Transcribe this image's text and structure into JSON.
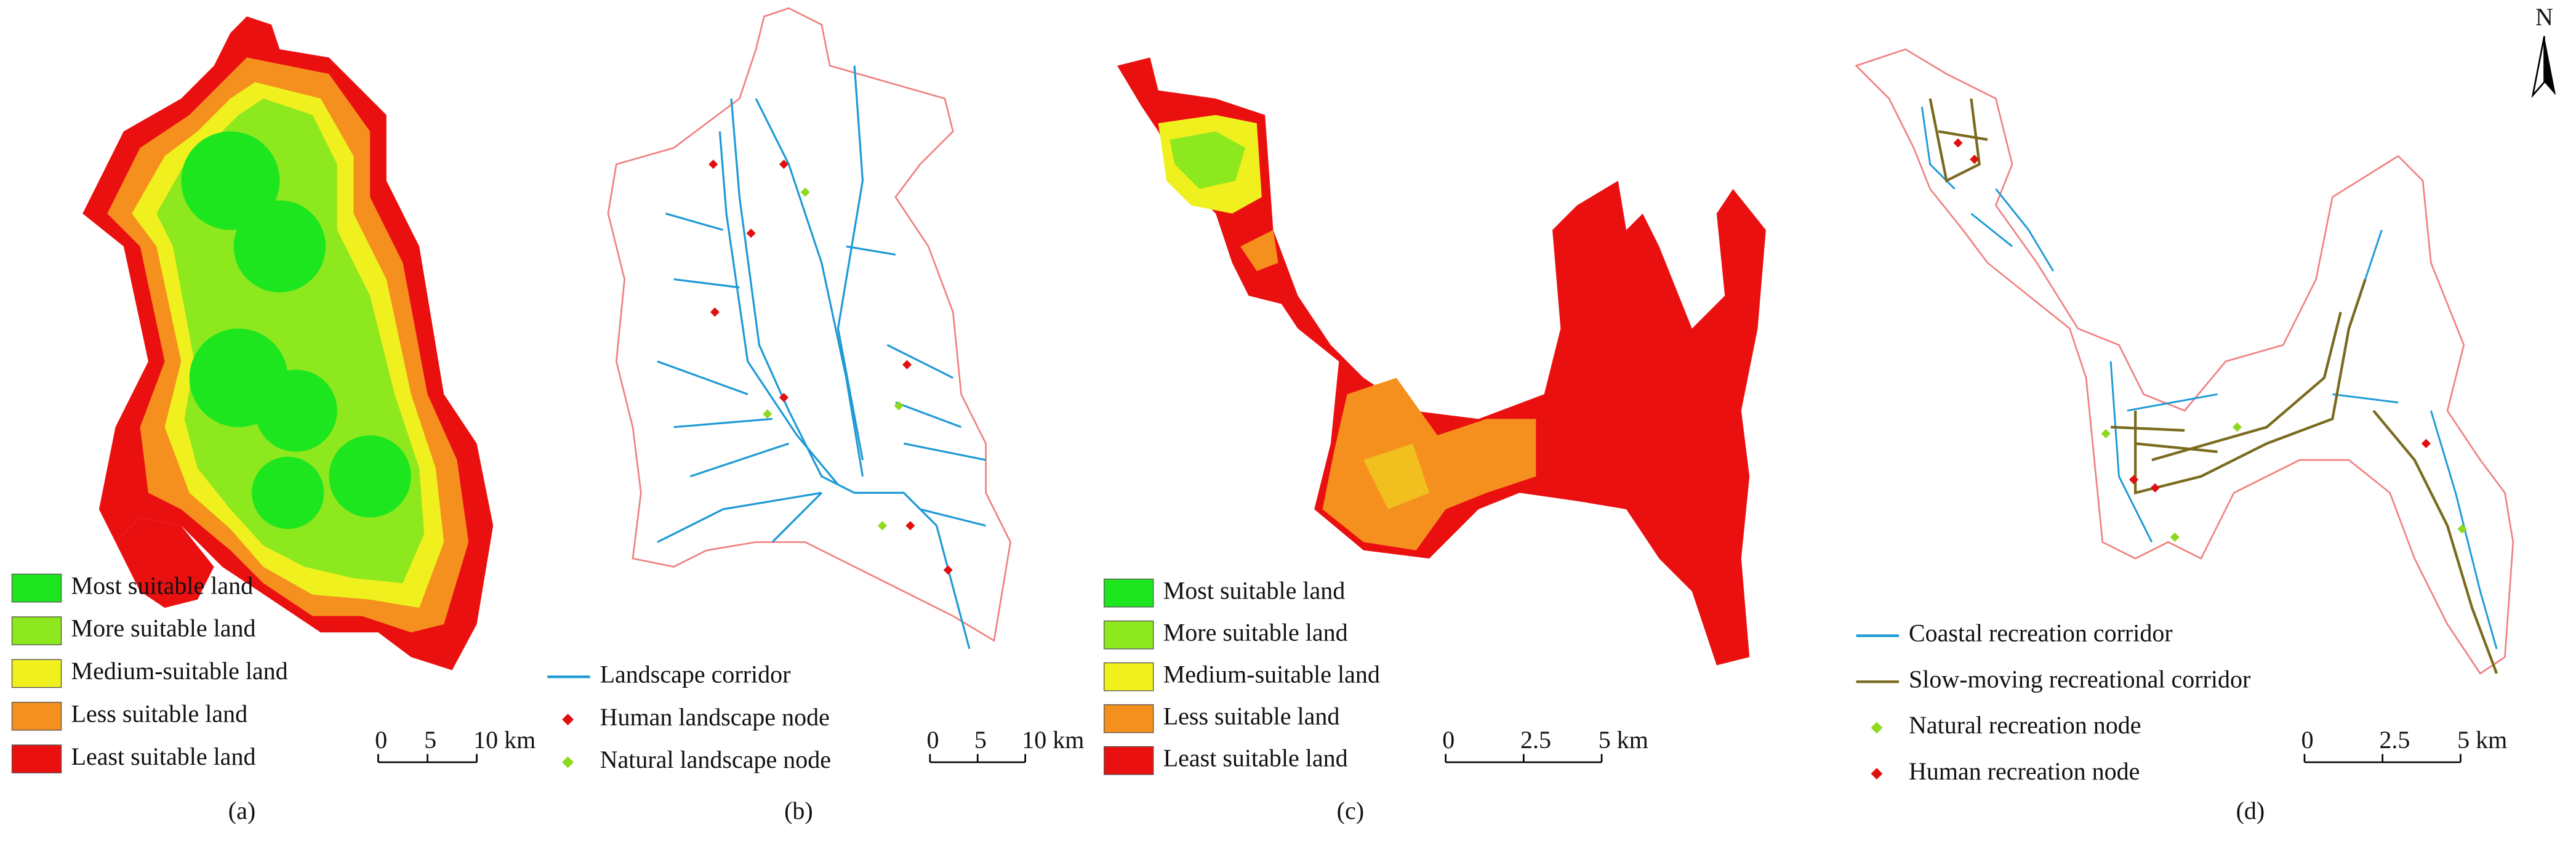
{
  "north": "N",
  "panels": [
    {
      "caption": "(a)",
      "scale": [
        "0",
        "5",
        "10 km"
      ],
      "legend": [
        {
          "label": "Most suitable land",
          "color": "#1ee61e",
          "symbol": "swatch"
        },
        {
          "label": "More suitable land",
          "color": "#8ee81e",
          "symbol": "swatch"
        },
        {
          "label": "Medium-suitable land",
          "color": "#f0f01e",
          "symbol": "swatch"
        },
        {
          "label": "Less suitable land",
          "color": "#f5901e",
          "symbol": "swatch"
        },
        {
          "label": "Least suitable land",
          "color": "#eb1010",
          "symbol": "swatch"
        }
      ]
    },
    {
      "caption": "(b)",
      "scale": [
        "0",
        "5",
        "10 km"
      ],
      "legend": [
        {
          "label": "Landscape corridor",
          "color": "#1e9ad6",
          "symbol": "line"
        },
        {
          "label": "Human landscape node",
          "color": "#e01010",
          "symbol": "diamond"
        },
        {
          "label": "Natural landscape node",
          "color": "#8ed81e",
          "symbol": "diamond"
        }
      ]
    },
    {
      "caption": "(c)",
      "scale": [
        "0",
        "2.5",
        "5 km"
      ],
      "legend": [
        {
          "label": "Most suitable land",
          "color": "#1ee61e",
          "symbol": "swatch"
        },
        {
          "label": "More suitable land",
          "color": "#8ee81e",
          "symbol": "swatch"
        },
        {
          "label": "Medium-suitable land",
          "color": "#f0f01e",
          "symbol": "swatch"
        },
        {
          "label": "Less suitable land",
          "color": "#f5901e",
          "symbol": "swatch"
        },
        {
          "label": "Least suitable land",
          "color": "#eb1010",
          "symbol": "swatch"
        }
      ]
    },
    {
      "caption": "(d)",
      "scale": [
        "0",
        "2.5",
        "5 km"
      ],
      "legend": [
        {
          "label": "Coastal recreation corridor",
          "color": "#1e9ad6",
          "symbol": "line"
        },
        {
          "label": "Slow-moving recreational corridor",
          "color": "#7a6a1e",
          "symbol": "line"
        },
        {
          "label": "Natural recreation node",
          "color": "#8ed81e",
          "symbol": "diamond"
        },
        {
          "label": "Human recreation node",
          "color": "#e01010",
          "symbol": "diamond"
        }
      ]
    }
  ]
}
